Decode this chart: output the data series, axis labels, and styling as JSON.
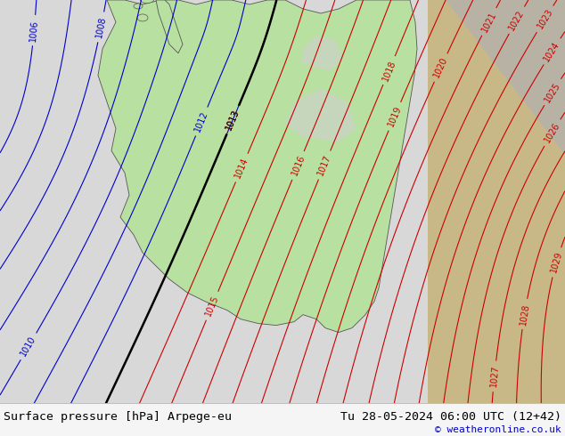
{
  "title_left": "Surface pressure [hPa] Arpege-eu",
  "title_right": "Tu 28-05-2024 06:00 UTC (12+42)",
  "copyright": "© weatheronline.co.uk",
  "fig_width": 6.34,
  "fig_height": 4.9,
  "dpi": 100,
  "bg_color": "#e8e8e8",
  "land_color_green": "#b8e0a0",
  "land_color_gray": "#c8c8c8",
  "sea_color": "#dde8f0",
  "bottom_bar_color": "#f0f0f0",
  "title_fontsize": 9.5,
  "copyright_fontsize": 8,
  "copyright_color": "#0000cc",
  "contour_red": "#cc0000",
  "contour_blue": "#0000cc",
  "contour_black": "#000000",
  "label_fontsize": 7
}
